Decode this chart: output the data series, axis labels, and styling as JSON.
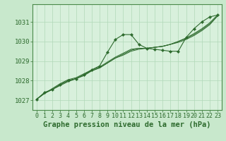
{
  "bg_color": "#c8e8cc",
  "plot_bg_color": "#d8f0dc",
  "grid_color": "#b0d8b8",
  "line_color": "#2d6a2d",
  "marker_color": "#2d6a2d",
  "spine_color": "#4a8a4a",
  "title": "Graphe pression niveau de la mer (hPa)",
  "title_color": "#2d6a2d",
  "xlim": [
    -0.5,
    23.5
  ],
  "ylim": [
    1026.5,
    1031.9
  ],
  "xticks": [
    0,
    1,
    2,
    3,
    4,
    5,
    6,
    7,
    8,
    9,
    10,
    11,
    12,
    13,
    14,
    15,
    16,
    17,
    18,
    19,
    20,
    21,
    22,
    23
  ],
  "yticks": [
    1027,
    1028,
    1029,
    1030,
    1031
  ],
  "series_main": [
    1027.05,
    1027.4,
    1027.55,
    1027.8,
    1028.0,
    1028.1,
    1028.3,
    1028.55,
    1028.75,
    1029.45,
    1030.1,
    1030.35,
    1030.35,
    1029.85,
    1029.65,
    1029.6,
    1029.55,
    1029.5,
    1029.5,
    1030.2,
    1030.65,
    1031.0,
    1031.25,
    1031.35
  ],
  "series_trend1": [
    1027.05,
    1027.35,
    1027.55,
    1027.75,
    1027.95,
    1028.1,
    1028.25,
    1028.5,
    1028.65,
    1028.9,
    1029.15,
    1029.3,
    1029.5,
    1029.6,
    1029.65,
    1029.7,
    1029.75,
    1029.85,
    1029.95,
    1030.1,
    1030.3,
    1030.55,
    1030.85,
    1031.3
  ],
  "series_trend2": [
    1027.05,
    1027.35,
    1027.55,
    1027.8,
    1028.0,
    1028.1,
    1028.3,
    1028.5,
    1028.65,
    1028.9,
    1029.15,
    1029.35,
    1029.55,
    1029.65,
    1029.65,
    1029.7,
    1029.75,
    1029.85,
    1030.0,
    1030.15,
    1030.35,
    1030.6,
    1030.9,
    1031.3
  ],
  "series_trend3": [
    1027.05,
    1027.35,
    1027.6,
    1027.85,
    1028.05,
    1028.15,
    1028.35,
    1028.55,
    1028.7,
    1028.95,
    1029.2,
    1029.4,
    1029.6,
    1029.65,
    1029.65,
    1029.7,
    1029.75,
    1029.85,
    1030.0,
    1030.18,
    1030.4,
    1030.65,
    1030.95,
    1031.35
  ],
  "tick_fontsize": 6.5,
  "title_fontsize": 7.5
}
